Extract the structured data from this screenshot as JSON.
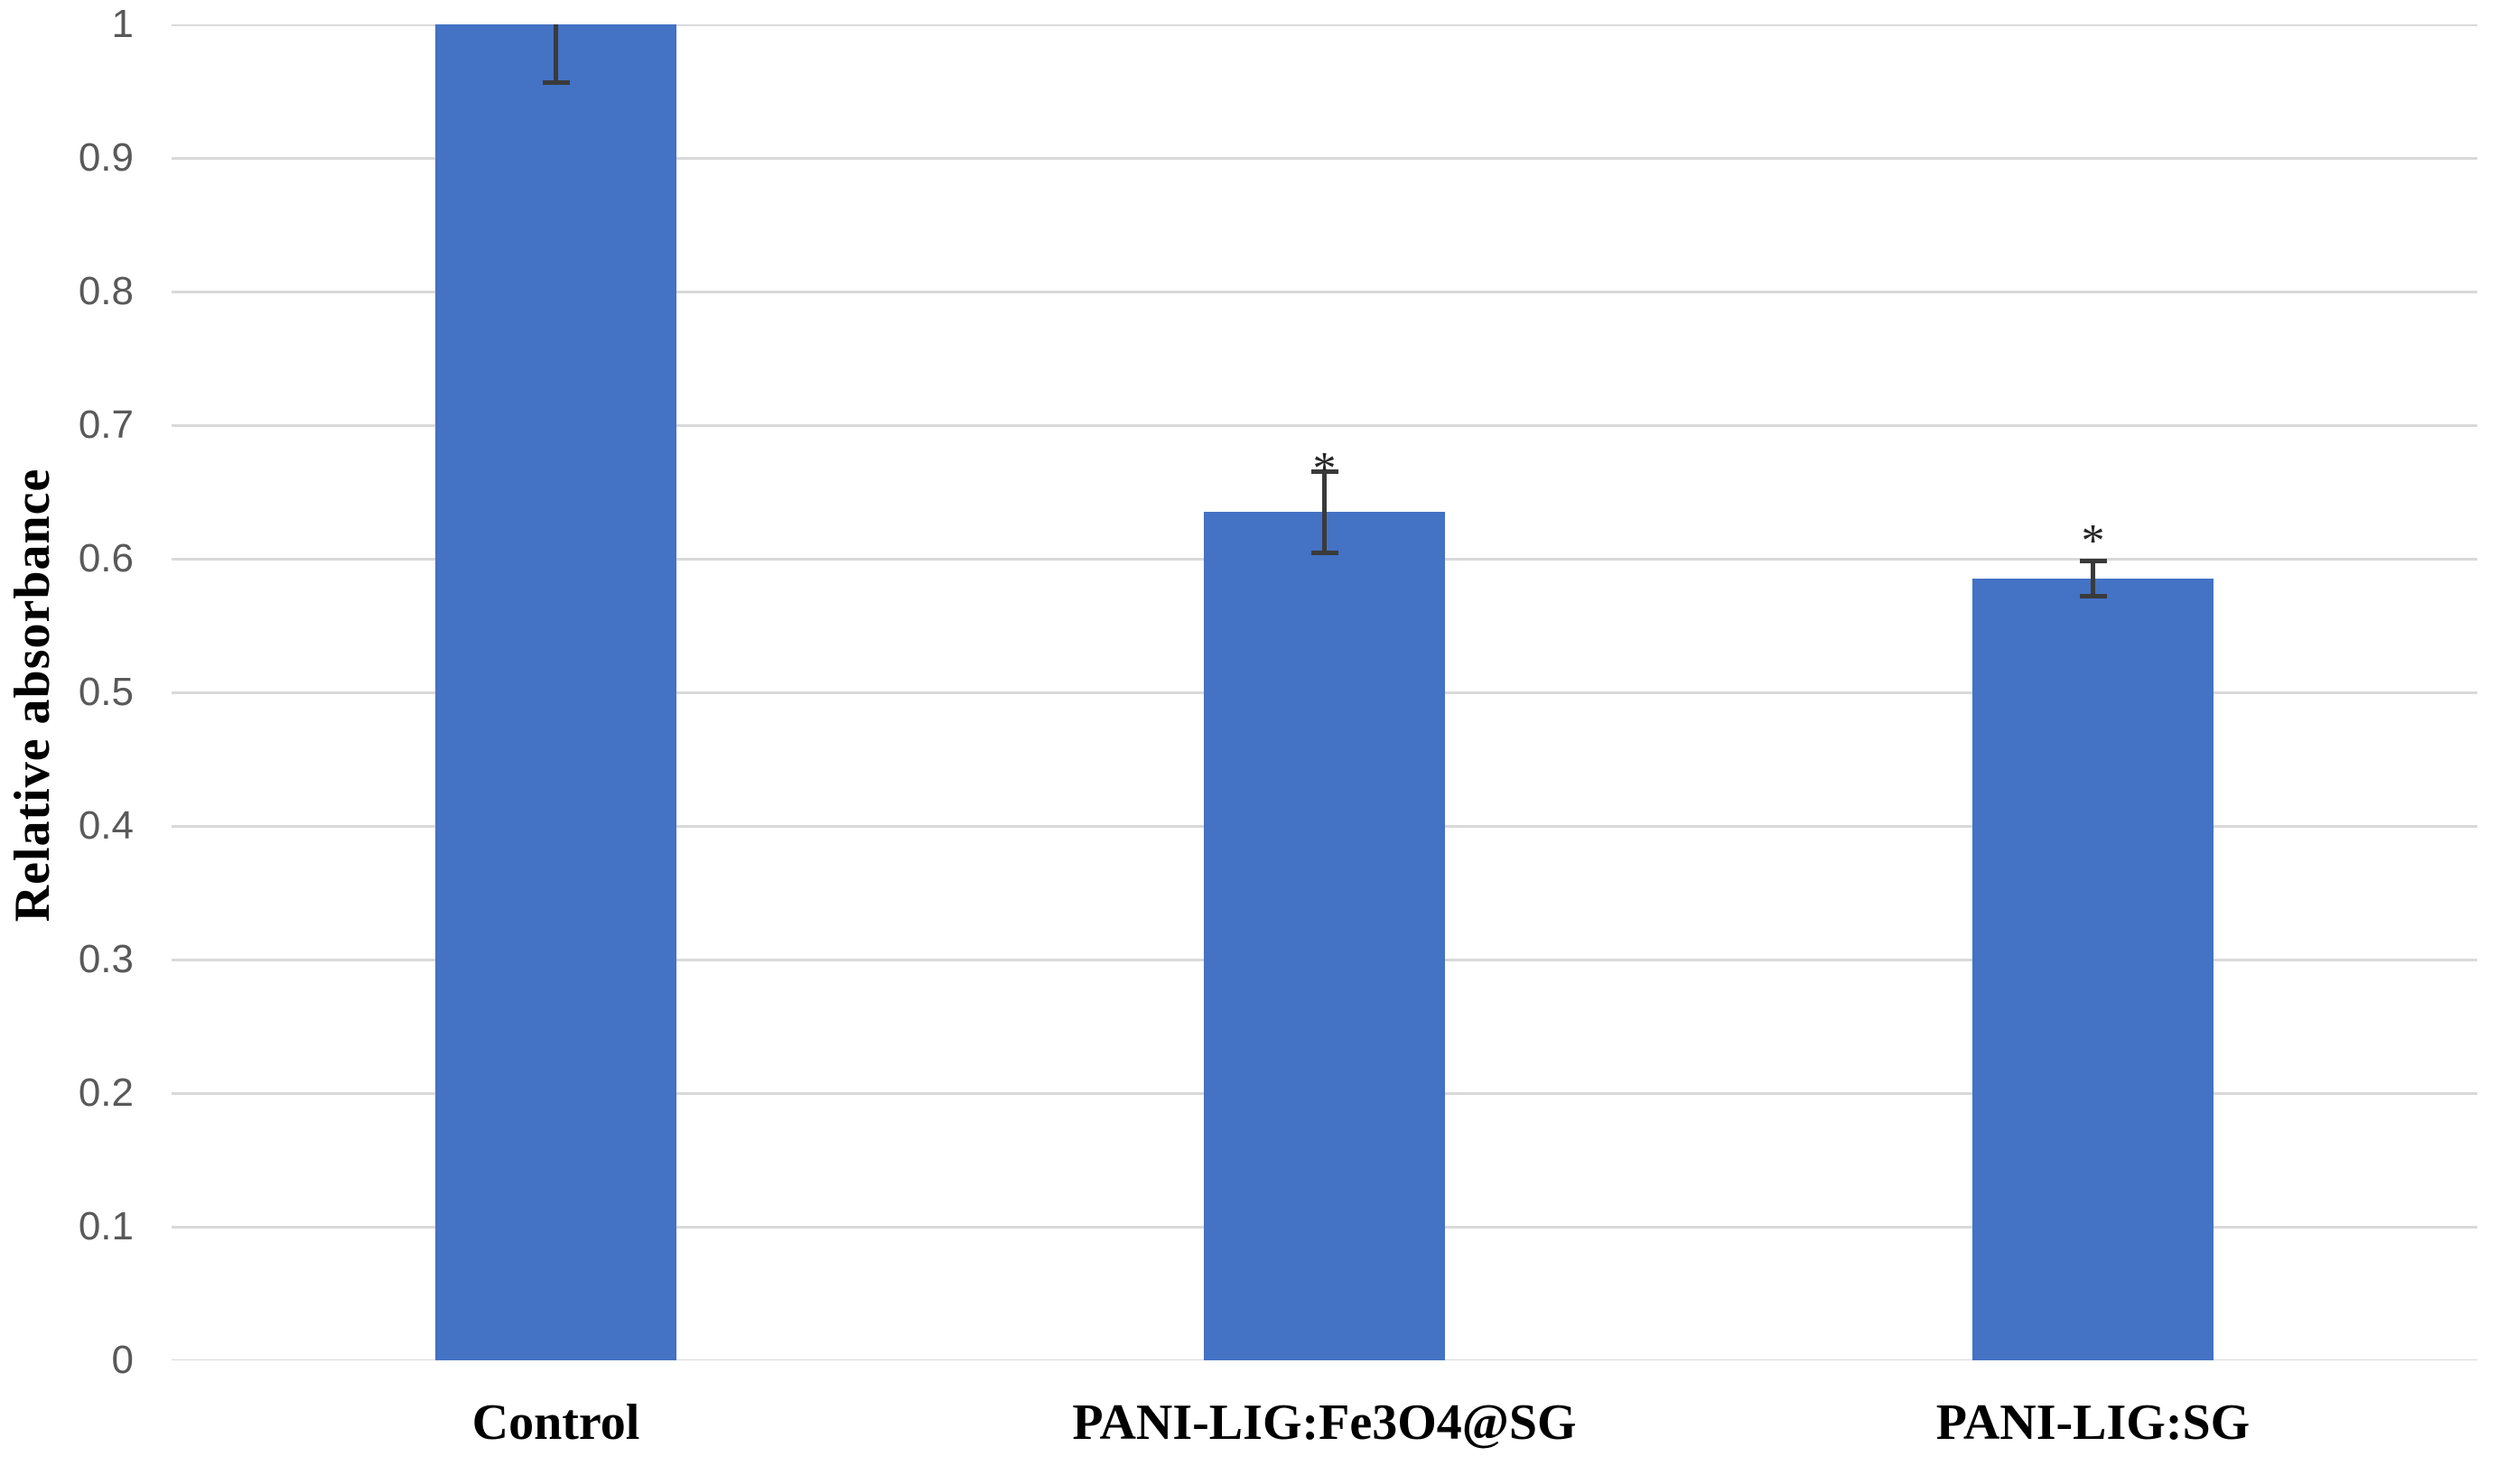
{
  "figure": {
    "background_color": "#ffffff",
    "bar_color": "#4472C4",
    "gridline_color": "#d9d9d9",
    "tick_label_color": "#595959",
    "error_bar_color": "#3a3a3a",
    "category_label_color": "#000000"
  },
  "chart_data": {
    "type": "bar",
    "title": "",
    "xlabel": "",
    "ylabel": "Relative absorbance",
    "ylim": [
      0,
      1
    ],
    "ytick_step": 0.1,
    "ytick_labels": [
      "0",
      "0.1",
      "0.2",
      "0.3",
      "0.4",
      "0.5",
      "0.6",
      "0.7",
      "0.8",
      "0.9",
      "1"
    ],
    "grid": true,
    "legend": null,
    "categories": [
      "Control",
      "PANI-LIG:Fe3O4@SG",
      "PANI-LIG:SG"
    ],
    "values": [
      1.0,
      0.635,
      0.585
    ],
    "errors": [
      0.045,
      0.032,
      0.015
    ],
    "significance": [
      null,
      "*",
      "*"
    ],
    "significance_y": [
      null,
      0.675,
      0.621
    ],
    "bar_color": "#4472C4"
  }
}
